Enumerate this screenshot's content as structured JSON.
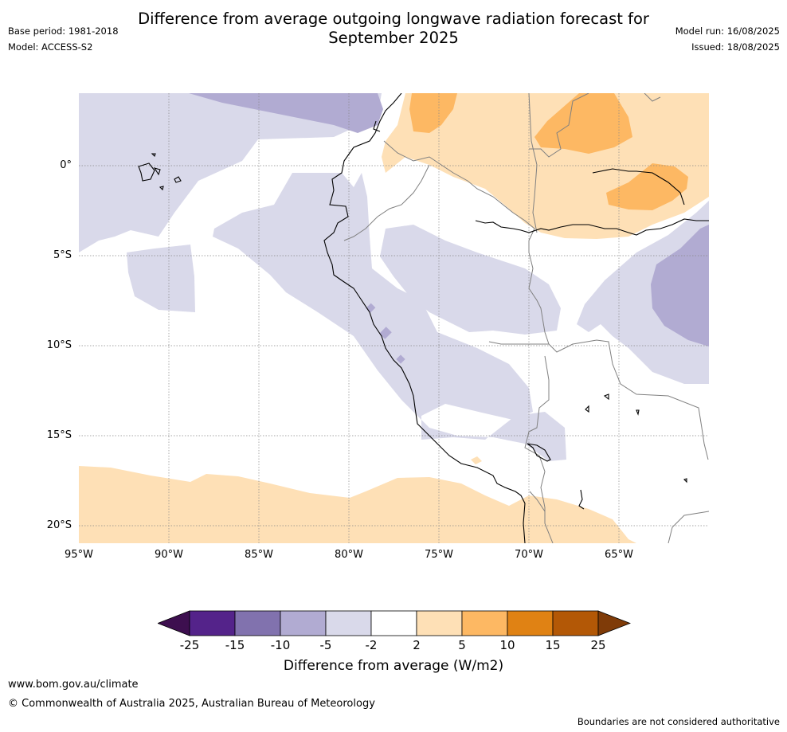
{
  "title_line1": "Difference from average outgoing longwave radiation forecast for",
  "title_line2": "September 2025",
  "base_period": "Base period: 1981-2018",
  "model": "Model: ACCESS-S2",
  "model_run": "Model run: 16/08/2025",
  "issued": "Issued: 18/08/2025",
  "lat_labels": [
    "0°",
    "5°S",
    "10°S",
    "15°S",
    "20°S"
  ],
  "lon_labels": [
    "95°W",
    "90°W",
    "85°W",
    "80°W",
    "75°W",
    "70°W",
    "65°W"
  ],
  "colorbar": {
    "ticks": [
      "-25",
      "-15",
      "-10",
      "-5",
      "-2",
      "2",
      "5",
      "10",
      "15",
      "25"
    ],
    "colors": [
      "#3d0f4f",
      "#54238a",
      "#8172ae",
      "#b1abd2",
      "#d9d9ea",
      "#ffffff",
      "#fee0b6",
      "#fdb863",
      "#e08214",
      "#b35806",
      "#7f3b08"
    ],
    "label": "Difference from average (W/m2)"
  },
  "footer_url": "www.bom.gov.au/climate",
  "copyright": "© Commonwealth of Australia 2025, Australian Bureau of Meteorology",
  "disclaimer": "Boundaries are not considered authoritative"
}
